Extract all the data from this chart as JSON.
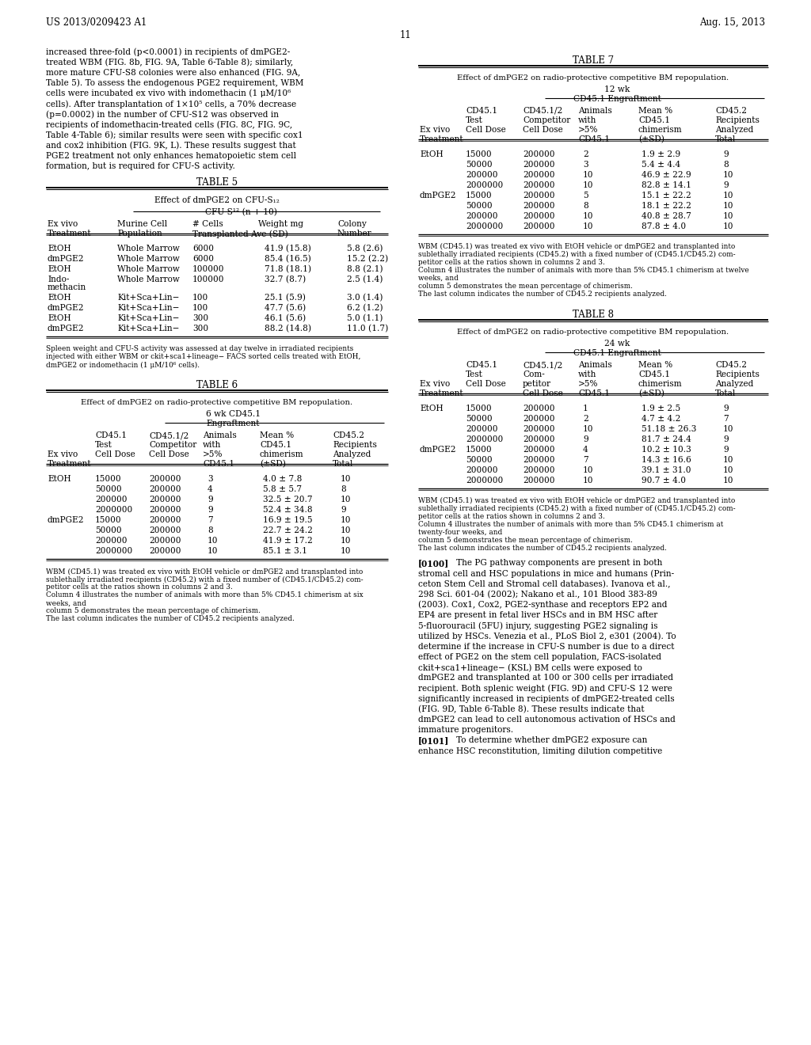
{
  "page_header_left": "US 2013/0209423 A1",
  "page_header_right": "Aug. 15, 2013",
  "page_number": "11",
  "background_color": "#ffffff",
  "body_text_left": [
    "increased three-fold (p<0.0001) in recipients of dmPGE2-",
    "treated WBM (FIG. 8b, FIG. 9A, Table 6-Table 8); similarly,",
    "more mature CFU-S8 colonies were also enhanced (FIG. 9A,",
    "Table 5). To assess the endogenous PGE2 requirement, WBM",
    "cells were incubated ex vivo with indomethacin (1 μM/10⁶",
    "cells). After transplantation of 1×10⁵ cells, a 70% decrease",
    "(p=0.0002) in the number of CFU-S12 was observed in",
    "recipients of indomethacin-treated cells (FIG. 8C, FIG. 9C,",
    "Table 4-Table 6); similar results were seen with specific cox1",
    "and cox2 inhibition (FIG. 9K, L). These results suggest that",
    "PGE2 treatment not only enhances hematopoietic stem cell",
    "formation, but is required for CFU-S activity."
  ],
  "table5_title": "TABLE 5",
  "table5_subtitle": "Effect of dmPGE2 on CFU-S₁₂",
  "table5_subheader": "CFU-S¹² (n + 10)",
  "table5_rows": [
    [
      "EtOH",
      "Whole Marrow",
      "6000",
      "41.9 (15.8)",
      "5.8 (2.6)"
    ],
    [
      "dmPGE2",
      "Whole Marrow",
      "6000",
      "85.4 (16.5)",
      "15.2 (2.2)"
    ],
    [
      "EtOH",
      "Whole Marrow",
      "100000",
      "71.8 (18.1)",
      "8.8 (2.1)"
    ],
    [
      "Indo-",
      "Whole Marrow",
      "100000",
      "32.7 (8.7)",
      "2.5 (1.4)"
    ],
    [
      "methacin",
      "",
      "",
      "",
      ""
    ],
    [
      "EtOH",
      "Kit+Sca+Lin−",
      "100",
      "25.1 (5.9)",
      "3.0 (1.4)"
    ],
    [
      "dmPGE2",
      "Kit+Sca+Lin−",
      "100",
      "47.7 (5.6)",
      "6.2 (1.2)"
    ],
    [
      "EtOH",
      "Kit+Sca+Lin−",
      "300",
      "46.1 (5.6)",
      "5.0 (1.1)"
    ],
    [
      "dmPGE2",
      "Kit+Sca+Lin−",
      "300",
      "88.2 (14.8)",
      "11.0 (1.7)"
    ]
  ],
  "table5_footnote": [
    "Spleen weight and CFU-S activity was assessed at day twelve in irradiated recipients",
    "injected with either WBM or ckit+sca1+lineage− FACS sorted cells treated with EtOH,",
    "dmPGE2 or indomethacin (1 μM/10⁶ cells)."
  ],
  "table6_title": "TABLE 6",
  "table6_subtitle": "Effect of dmPGE2 on radio-protective competitive BM repopulation.",
  "table6_subheader": "6 wk CD45.1",
  "table6_subheader2": "Engraftment",
  "table6_rows": [
    [
      "EtOH",
      "15000",
      "200000",
      "3",
      "4.0 ± 7.8",
      "10"
    ],
    [
      "",
      "50000",
      "200000",
      "4",
      "5.8 ± 5.7",
      "8"
    ],
    [
      "",
      "200000",
      "200000",
      "9",
      "32.5 ± 20.7",
      "10"
    ],
    [
      "",
      "2000000",
      "200000",
      "9",
      "52.4 ± 34.8",
      "9"
    ],
    [
      "dmPGE2",
      "15000",
      "200000",
      "7",
      "16.9 ± 19.5",
      "10"
    ],
    [
      "",
      "50000",
      "200000",
      "8",
      "22.7 ± 24.2",
      "10"
    ],
    [
      "",
      "200000",
      "200000",
      "10",
      "41.9 ± 17.2",
      "10"
    ],
    [
      "",
      "2000000",
      "200000",
      "10",
      "85.1 ± 3.1",
      "10"
    ]
  ],
  "table6_footnote": [
    "WBM (CD45.1) was treated ex vivo with EtOH vehicle or dmPGE2 and transplanted into",
    "sublethally irradiated recipients (CD45.2) with a fixed number of (CD45.1/CD45.2) com-",
    "petitor cells at the ratios shown in columns 2 and 3.",
    "Column 4 illustrates the number of animals with more than 5% CD45.1 chimerism at six",
    "weeks, and",
    "column 5 demonstrates the mean percentage of chimerism.",
    "The last column indicates the number of CD45.2 recipients analyzed."
  ],
  "table7_title": "TABLE 7",
  "table7_subtitle": "Effect of dmPGE2 on radio-protective competitive BM repopulation.",
  "table7_subheader": "12 wk",
  "table7_subheader2": "CD45.1 Engraftment",
  "table7_rows": [
    [
      "EtOH",
      "15000",
      "200000",
      "2",
      "1.9 ± 2.9",
      "9"
    ],
    [
      "",
      "50000",
      "200000",
      "3",
      "5.4 ± 4.4",
      "8"
    ],
    [
      "",
      "200000",
      "200000",
      "10",
      "46.9 ± 22.9",
      "10"
    ],
    [
      "",
      "2000000",
      "200000",
      "10",
      "82.8 ± 14.1",
      "9"
    ],
    [
      "dmPGE2",
      "15000",
      "200000",
      "5",
      "15.1 ± 22.2",
      "10"
    ],
    [
      "",
      "50000",
      "200000",
      "8",
      "18.1 ± 22.2",
      "10"
    ],
    [
      "",
      "200000",
      "200000",
      "10",
      "40.8 ± 28.7",
      "10"
    ],
    [
      "",
      "2000000",
      "200000",
      "10",
      "87.8 ± 4.0",
      "10"
    ]
  ],
  "table7_footnote": [
    "WBM (CD45.1) was treated ex vivo with EtOH vehicle or dmPGE2 and transplanted into",
    "sublethally irradiated recipients (CD45.2) with a fixed number of (CD45.1/CD45.2) com-",
    "petitor cells at the ratios shown in columns 2 and 3.",
    "Column 4 illustrates the number of animals with more than 5% CD45.1 chimerism at twelve",
    "weeks, and",
    "column 5 demonstrates the mean percentage of chimerism.",
    "The last column indicates the number of CD45.2 recipients analyzed."
  ],
  "table8_title": "TABLE 8",
  "table8_subtitle": "Effect of dmPGE2 on radio-protective competitive BM repopulation.",
  "table8_subheader": "24 wk",
  "table8_subheader2": "CD45.1 Engraftment",
  "table8_rows": [
    [
      "EtOH",
      "15000",
      "200000",
      "1",
      "1.9 ± 2.5",
      "9"
    ],
    [
      "",
      "50000",
      "200000",
      "2",
      "4.7 ± 4.2",
      "7"
    ],
    [
      "",
      "200000",
      "200000",
      "10",
      "51.18 ± 26.3",
      "10"
    ],
    [
      "",
      "2000000",
      "200000",
      "9",
      "81.7 ± 24.4",
      "9"
    ],
    [
      "dmPGE2",
      "15000",
      "200000",
      "4",
      "10.2 ± 10.3",
      "9"
    ],
    [
      "",
      "50000",
      "200000",
      "7",
      "14.3 ± 16.6",
      "10"
    ],
    [
      "",
      "200000",
      "200000",
      "10",
      "39.1 ± 31.0",
      "10"
    ],
    [
      "",
      "2000000",
      "200000",
      "10",
      "90.7 ± 4.0",
      "10"
    ]
  ],
  "table8_footnote": [
    "WBM (CD45.1) was treated ex vivo with EtOH vehicle or dmPGE2 and transplanted into",
    "sublethally irradiated recipients (CD45.2) with a fixed number of (CD45.1/CD45.2) com-",
    "petitor cells at the ratios shown in columns 2 and 3.",
    "Column 4 illustrates the number of animals with more than 5% CD45.1 chimerism at",
    "twenty-four weeks, and",
    "column 5 demonstrates the mean percentage of chimerism.",
    "The last column indicates the number of CD45.2 recipients analyzed."
  ],
  "body_text_right": [
    [
      "[0100]",
      "   The PG pathway components are present in both"
    ],
    [
      "",
      "stromal cell and HSC populations in mice and humans (Prin-"
    ],
    [
      "",
      "ceton Stem Cell and Stromal cell databases). Ivanova et al.,"
    ],
    [
      "",
      "298 Sci. 601-04 (2002); Nakano et al., 101 Blood 383-89"
    ],
    [
      "",
      "(2003). Cox1, Cox2, PGE2-synthase and receptors EP2 and"
    ],
    [
      "",
      "EP4 are present in fetal liver HSCs and in BM HSC after"
    ],
    [
      "",
      "5-fluorouracil (5FU) injury, suggesting PGE2 signaling is"
    ],
    [
      "",
      "utilized by HSCs. Venezia et al., PLoS Biol 2, e301 (2004). To"
    ],
    [
      "",
      "determine if the increase in CFU-S number is due to a direct"
    ],
    [
      "",
      "effect of PGE2 on the stem cell population, FACS-isolated"
    ],
    [
      "",
      "ckit+sca1+lineage− (KSL) BM cells were exposed to"
    ],
    [
      "",
      "dmPGE2 and transplanted at 100 or 300 cells per irradiated"
    ],
    [
      "",
      "recipient. Both splenic weight (FIG. 9D) and CFU-S 12 were"
    ],
    [
      "",
      "significantly increased in recipients of dmPGE2-treated cells"
    ],
    [
      "",
      "(FIG. 9D, Table 6-Table 8). These results indicate that"
    ],
    [
      "",
      "dmPGE2 can lead to cell autonomous activation of HSCs and"
    ],
    [
      "",
      "immature progenitors."
    ],
    [
      "[0101]",
      "   To determine whether dmPGE2 exposure can"
    ],
    [
      "",
      "enhance HSC reconstitution, limiting dilution competitive"
    ]
  ]
}
